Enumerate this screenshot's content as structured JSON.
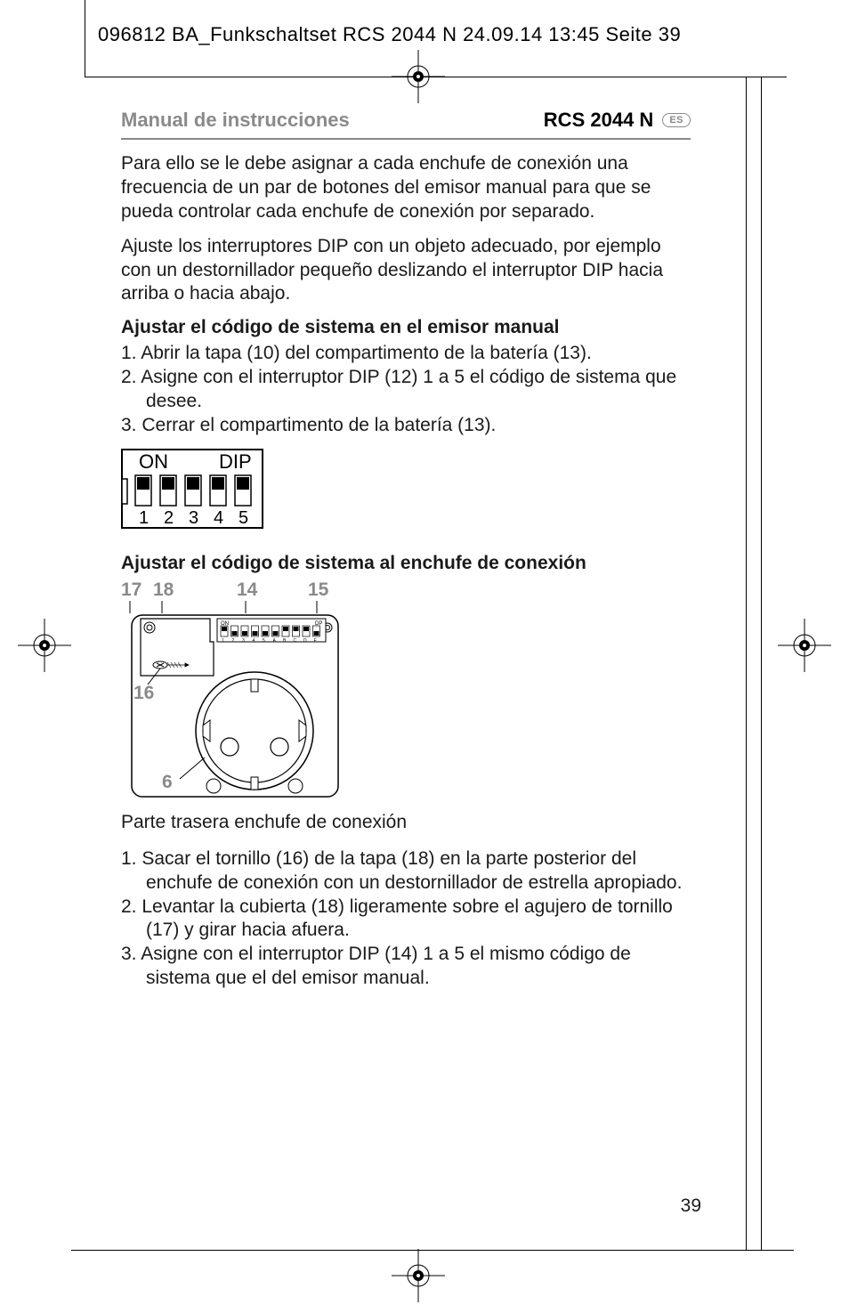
{
  "print_header": "096812 BA_Funkschaltset RCS 2044 N  24.09.14  13:45  Seite 39",
  "doc_header": {
    "left": "Manual de instrucciones",
    "model": "RCS 2044 N",
    "lang": "ES"
  },
  "para1": "Para ello se le debe asignar a cada enchufe de conexión una frecuencia de un par de botones del emisor manual para que se pueda controlar cada enchufe de conexión por separado.",
  "para2": "Ajuste los interruptores DIP con un objeto adecuado, por ejemplo con un destornillador pequeño deslizando el interruptor DIP hacia arriba o hacia abajo.",
  "section1": {
    "title": "Ajustar el código de sistema en el emisor manual",
    "steps": [
      "1.  Abrir la tapa (10) del compartimento de la batería (13).",
      "2. Asigne con el interruptor DIP (12) 1 a 5 el código de sistema que desee.",
      "3. Cerrar el compartimento de la batería (13)."
    ]
  },
  "dip": {
    "on_label": "ON",
    "dip_label": "DIP",
    "numbers": [
      "1",
      "2",
      "3",
      "4",
      "5"
    ],
    "positions": [
      "up",
      "up",
      "up",
      "up",
      "up"
    ]
  },
  "section2": {
    "title": "Ajustar el código de sistema al enchufe de conexión",
    "callouts": {
      "c17": "17",
      "c18": "18",
      "c14": "14",
      "c15": "15",
      "c16": "16",
      "c6": "6"
    },
    "caption": "Parte trasera enchufe de conexión",
    "steps": [
      "1.  Sacar el tornillo (16) de la tapa (18) en la parte posterior del enchufe de conexión con un destornillador de estrella apropiado.",
      "2. Levantar la cubierta (18) ligeramente sobre el agujero de tornillo (17) y girar hacia afuera.",
      "3. Asigne con el interruptor DIP (14) 1 a 5 el mismo código de sistema que el del emisor manual."
    ]
  },
  "mini_dip": {
    "on": "ON",
    "dp": "DP",
    "labels": [
      "1",
      "2",
      "3",
      "4",
      "5",
      "A",
      "B",
      "C",
      "D",
      "E"
    ],
    "positions": [
      "up",
      "down",
      "down",
      "down",
      "down",
      "down",
      "up",
      "up",
      "up",
      "down"
    ]
  },
  "page_number": "39",
  "colors": {
    "text": "#1a1a1a",
    "grey": "#8a8a8a",
    "black": "#000000",
    "white": "#ffffff"
  }
}
